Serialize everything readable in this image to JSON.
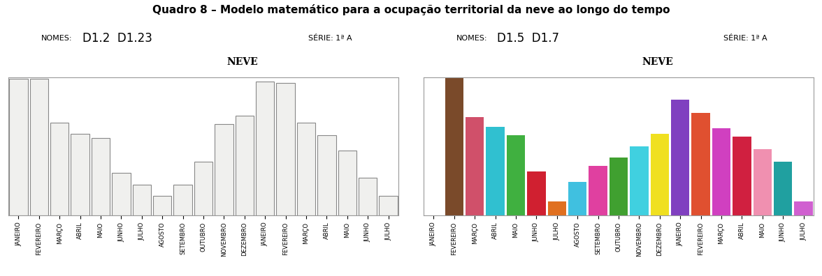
{
  "title": "Quadro 8 – Modelo matemático para a ocupação territorial da neve ao longo do tempo",
  "chart_data": [
    {
      "type": "bar",
      "title": "NEVE",
      "names_label": "NOMES:",
      "names": "D1.2  D1.23",
      "class_label": "SÉRIE: 1ª A",
      "categories": [
        "JANEIRO",
        "FEVEREIRO",
        "MARÇO",
        "ABRIL",
        "MAIO",
        "JUNHO",
        "JULHO",
        "AGOSTO",
        "SETEMBRO",
        "OUTUBRO",
        "NOVEMBRO",
        "DEZEMBRO",
        "JANEIRO",
        "FEVEREIRO",
        "MARÇO",
        "ABRIL",
        "MAIO",
        "JUNHO",
        "JULHO"
      ],
      "values": [
        99,
        99,
        67,
        59,
        56,
        31,
        22,
        14,
        22,
        39,
        66,
        72,
        97,
        96,
        67,
        58,
        47,
        27,
        14
      ],
      "color": "#f0f0ee",
      "ylim": [
        0,
        100
      ],
      "yticks": [],
      "tick_labels": "x",
      "grid": false
    },
    {
      "type": "bar",
      "title": "NEVE",
      "names_label": "NOMES:",
      "names": "D1.5  D1.7",
      "class_label": "SÉRIE: 1ª A",
      "categories": [
        "JANEIRO",
        "FEVEREIRO",
        "MARÇO",
        "ABRIL",
        "MAIO",
        "JUNHO",
        "JULHO",
        "AGOSTO",
        "SETEMBRO",
        "OUTUBRO",
        "NOVEMBRO",
        "DEZEMBRO",
        "JANEIRO",
        "FEVEREIRO",
        "MARÇO",
        "ABRIL",
        "MAIO",
        "JUNHO",
        "JULHO"
      ],
      "values": [
        0,
        100,
        71,
        64,
        58,
        32,
        10,
        24,
        36,
        42,
        50,
        59,
        84,
        74,
        63,
        57,
        48,
        39,
        10
      ],
      "colors": [
        "#ffffff",
        "#7a4a2a",
        "#d0506a",
        "#30c0d0",
        "#40b040",
        "#d02030",
        "#e07020",
        "#40c0e0",
        "#e040a0",
        "#40a030",
        "#40d0e0",
        "#f0e020",
        "#8040c0",
        "#e05030",
        "#d040c0",
        "#d02040",
        "#f090b0",
        "#20a0a0",
        "#d060d0"
      ],
      "ylim": [
        0,
        100
      ],
      "yticks": [],
      "tick_labels": "x",
      "grid": false
    }
  ]
}
